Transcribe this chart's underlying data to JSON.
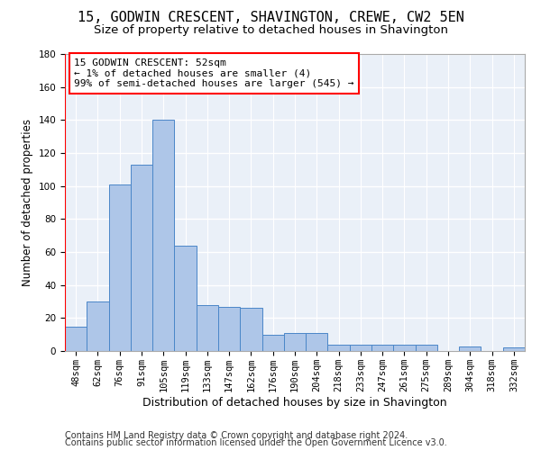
{
  "title": "15, GODWIN CRESCENT, SHAVINGTON, CREWE, CW2 5EN",
  "subtitle": "Size of property relative to detached houses in Shavington",
  "xlabel": "Distribution of detached houses by size in Shavington",
  "ylabel": "Number of detached properties",
  "categories": [
    "48sqm",
    "62sqm",
    "76sqm",
    "91sqm",
    "105sqm",
    "119sqm",
    "133sqm",
    "147sqm",
    "162sqm",
    "176sqm",
    "190sqm",
    "204sqm",
    "218sqm",
    "233sqm",
    "247sqm",
    "261sqm",
    "275sqm",
    "289sqm",
    "304sqm",
    "318sqm",
    "332sqm"
  ],
  "values": [
    15,
    30,
    101,
    113,
    140,
    64,
    28,
    27,
    26,
    10,
    11,
    11,
    4,
    4,
    4,
    4,
    4,
    0,
    3,
    0,
    2
  ],
  "bar_color": "#aec6e8",
  "bar_edge_color": "#4a86c8",
  "annotation_text": "15 GODWIN CRESCENT: 52sqm\n← 1% of detached houses are smaller (4)\n99% of semi-detached houses are larger (545) →",
  "annotation_box_color": "white",
  "annotation_box_edge_color": "red",
  "vline_color": "red",
  "ylim": [
    0,
    180
  ],
  "yticks": [
    0,
    20,
    40,
    60,
    80,
    100,
    120,
    140,
    160,
    180
  ],
  "footer_line1": "Contains HM Land Registry data © Crown copyright and database right 2024.",
  "footer_line2": "Contains public sector information licensed under the Open Government Licence v3.0.",
  "bg_color": "#eaf0f8",
  "grid_color": "white",
  "title_fontsize": 11,
  "subtitle_fontsize": 9.5,
  "ylabel_fontsize": 8.5,
  "xlabel_fontsize": 9,
  "tick_fontsize": 7.5,
  "annotation_fontsize": 8,
  "footer_fontsize": 7
}
